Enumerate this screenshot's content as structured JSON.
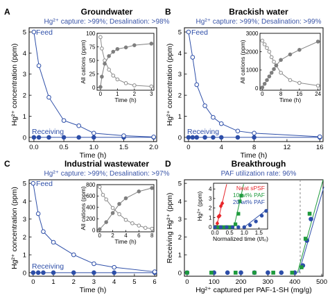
{
  "colors": {
    "feed": "#2d4ea8",
    "receiving": "#2d4ea8",
    "inset_filled": "#7f7f7f",
    "inset_open": "#8a8a8a",
    "neat": "#e8262b",
    "paf10": "#1e9a3c",
    "paf20": "#2d4ea8"
  },
  "chart_data": [
    {
      "panel": "A",
      "type": "line",
      "title": "Groundwater",
      "subtitle": "Hg²⁺ capture: >99%; Desalination: >98%",
      "xlabel": "Time (h)",
      "ylabel": "Hg²⁺ concentration (ppm)",
      "xlim": [
        -0.08,
        2.05
      ],
      "ylim": [
        -0.2,
        5.2
      ],
      "xticks": [
        "0.0",
        "0.5",
        "1.0",
        "1.5",
        "2.0"
      ],
      "xtick_values": [
        0,
        0.5,
        1,
        1.5,
        2
      ],
      "yticks": [
        "0",
        "1",
        "2",
        "3",
        "4",
        "5"
      ],
      "ytick_values": [
        0,
        1,
        2,
        3,
        4,
        5
      ],
      "annotations": [
        "Feed",
        "Receiving"
      ],
      "series": [
        {
          "name": "Feed",
          "marker": "open",
          "x": [
            0,
            0.083,
            0.25,
            0.5,
            0.75,
            1.0,
            1.5,
            2.0
          ],
          "y": [
            5.0,
            3.4,
            1.9,
            0.8,
            0.55,
            0.2,
            0.08,
            0.02
          ]
        },
        {
          "name": "Receiving",
          "marker": "filled",
          "x": [
            0,
            0.083,
            0.25,
            0.5,
            0.75,
            1.0,
            1.5,
            2.0
          ],
          "y": [
            0,
            0,
            0,
            0,
            0,
            0,
            0,
            0
          ]
        }
      ],
      "inset": {
        "xlabel": "Time (h)",
        "ylabel": "All cations (ppm)",
        "xlim": [
          -0.2,
          3.15
        ],
        "ylim": [
          -5,
          100
        ],
        "xticks": [
          "0",
          "1",
          "2",
          "3"
        ],
        "xtick_values": [
          0,
          1,
          2,
          3
        ],
        "yticks": [
          "0",
          "25",
          "50",
          "75",
          "100"
        ],
        "ytick_values": [
          0,
          25,
          50,
          75,
          100
        ],
        "series": [
          {
            "marker": "open",
            "x": [
              0,
              0.083,
              0.25,
              0.5,
              0.75,
              1.0,
              1.5,
              2.0,
              3.0
            ],
            "y": [
              93,
              72,
              50,
              33,
              22,
              15,
              8,
              4,
              2
            ]
          },
          {
            "marker": "filled",
            "x": [
              0,
              0.083,
              0.25,
              0.5,
              0.75,
              1.0,
              1.5,
              2.0,
              3.0
            ],
            "y": [
              1,
              20,
              44,
              58,
              66,
              71,
              74,
              78,
              81
            ]
          }
        ]
      }
    },
    {
      "panel": "B",
      "type": "line",
      "title": "Brackish water",
      "subtitle": "Hg²⁺ capture: >99%; Desalination: >99%",
      "xlabel": "Time (h)",
      "ylabel": "Hg²⁺ concentration (ppm)",
      "xlim": [
        -0.5,
        16.4
      ],
      "ylim": [
        -0.2,
        5.2
      ],
      "xticks": [
        "0",
        "4",
        "8",
        "12",
        "16"
      ],
      "xtick_values": [
        0,
        4,
        8,
        12,
        16
      ],
      "yticks": [
        "0",
        "1",
        "2",
        "3",
        "4",
        "5"
      ],
      "ytick_values": [
        0,
        1,
        2,
        3,
        4,
        5
      ],
      "annotations": [
        "Feed",
        "Receiving"
      ],
      "series": [
        {
          "name": "Feed",
          "marker": "open",
          "x": [
            0,
            0.5,
            1,
            2,
            3,
            4,
            6,
            8,
            16
          ],
          "y": [
            5.0,
            3.8,
            2.5,
            1.5,
            0.95,
            0.65,
            0.3,
            0.2,
            0.03
          ]
        },
        {
          "name": "Receiving",
          "marker": "filled",
          "x": [
            0,
            0.5,
            1,
            2,
            3,
            4,
            6,
            8,
            16
          ],
          "y": [
            0,
            0,
            0,
            0,
            0,
            0,
            0,
            0,
            0
          ]
        }
      ],
      "inset": {
        "xlabel": "Time (h)",
        "ylabel": "All cations (ppm)",
        "x_display": [
          0,
          1,
          2,
          3,
          4,
          5,
          6,
          8,
          12,
          16,
          24
        ],
        "xlim": [
          -1,
          25
        ],
        "ylim": [
          -100,
          3000
        ],
        "xticks": [
          "0",
          "8",
          "16",
          "24"
        ],
        "xtick_values": [
          0,
          8,
          16,
          24
        ],
        "yticks": [
          "0",
          "1000",
          "2000",
          "3000"
        ],
        "ytick_values": [
          0,
          1000,
          2000,
          3000
        ],
        "series": [
          {
            "marker": "open",
            "x": [
              0,
              1,
              2,
              3,
              4,
              5,
              6,
              8,
              12,
              16,
              24
            ],
            "y": [
              2600,
              2400,
              2200,
              2000,
              1700,
              1450,
              1250,
              850,
              450,
              300,
              150
            ]
          },
          {
            "marker": "filled",
            "x": [
              0,
              1,
              2,
              3,
              4,
              5,
              6,
              8,
              12,
              16,
              24
            ],
            "y": [
              50,
              250,
              450,
              650,
              850,
              1050,
              1250,
              1550,
              1850,
              2100,
              2550
            ]
          }
        ]
      }
    },
    {
      "panel": "C",
      "type": "line",
      "title": "Industrial wastewater",
      "subtitle": "Hg²⁺ capture: >99%; Desalination: >97%",
      "xlabel": "Time (h)",
      "ylabel": "Hg²⁺ concentration (ppm)",
      "xlim": [
        -0.2,
        6.1
      ],
      "ylim": [
        -0.2,
        5.2
      ],
      "xticks": [
        "0",
        "1",
        "2",
        "3",
        "4",
        "5",
        "6"
      ],
      "xtick_values": [
        0,
        1,
        2,
        3,
        4,
        5,
        6
      ],
      "yticks": [
        "0",
        "1",
        "2",
        "3",
        "4",
        "5"
      ],
      "ytick_values": [
        0,
        1,
        2,
        3,
        4,
        5
      ],
      "annotations": [
        "Feed",
        "Receiving"
      ],
      "series": [
        {
          "name": "Feed",
          "marker": "open",
          "x": [
            0,
            0.25,
            0.5,
            1,
            2,
            3,
            4,
            6
          ],
          "y": [
            5.0,
            3.3,
            2.3,
            1.7,
            1.0,
            0.5,
            0.3,
            0.05
          ]
        },
        {
          "name": "Receiving",
          "marker": "filled",
          "x": [
            0,
            0.25,
            0.5,
            1,
            2,
            3,
            4,
            6
          ],
          "y": [
            0,
            0,
            0,
            0,
            0,
            0,
            0,
            0
          ]
        }
      ],
      "inset": {
        "xlabel": "Time (h)",
        "ylabel": "All cations (ppm)",
        "xlim": [
          -0.4,
          8.3
        ],
        "ylim": [
          -30,
          800
        ],
        "xticks": [
          "0",
          "2",
          "4",
          "6",
          "8"
        ],
        "xtick_values": [
          0,
          2,
          4,
          6,
          8
        ],
        "yticks": [
          "0",
          "200",
          "400",
          "600",
          "800"
        ],
        "ytick_values": [
          0,
          200,
          400,
          600,
          800
        ],
        "series": [
          {
            "marker": "open",
            "x": [
              0,
              0.5,
              1,
              2,
              3,
              4,
              5,
              6,
              7,
              8
            ],
            "y": [
              760,
              620,
              540,
              390,
              280,
              180,
              120,
              80,
              40,
              25
            ]
          },
          {
            "marker": "filled",
            "x": [
              0,
              1,
              2,
              3,
              4,
              6,
              8
            ],
            "y": [
              15,
              140,
              300,
              460,
              560,
              680,
              740
            ]
          }
        ]
      }
    },
    {
      "panel": "D",
      "type": "line",
      "title": "Breakthrough",
      "subtitle": "PAF utilization rate: 96%",
      "xlabel": "Hg²⁺ captured per PAF-1-SH (mg/g)",
      "ylabel": "Receiving Hg²⁺ (ppm)",
      "xlim": [
        -10,
        505
      ],
      "ylim": [
        -0.2,
        5.2
      ],
      "xticks": [
        "0",
        "100",
        "200",
        "300",
        "400",
        "500"
      ],
      "xtick_values": [
        0,
        100,
        200,
        300,
        400,
        500
      ],
      "yticks": [
        "0",
        "1",
        "2",
        "3",
        "4",
        "5"
      ],
      "ytick_values": [
        0,
        1,
        2,
        3,
        4,
        5
      ],
      "vline_x": 420,
      "series": [
        {
          "name": "20 wt% PAF",
          "color": "paf20",
          "x": [
            0,
            100,
            150,
            200,
            250,
            300,
            350,
            400,
            430,
            445,
            460
          ],
          "y": [
            0,
            0,
            0,
            0,
            0,
            0,
            0,
            0,
            0.4,
            1.8,
            3.0
          ]
        },
        {
          "name": "10 wt% PAF",
          "color": "paf10",
          "x": [
            0,
            90,
            180,
            250,
            320,
            390,
            425,
            440,
            455
          ],
          "y": [
            0,
            0,
            0,
            0,
            0,
            0,
            0.3,
            1.9,
            3.3
          ]
        }
      ],
      "fit_line": {
        "x": [
          410,
          505
        ],
        "y": [
          0,
          5.2
        ]
      },
      "inset": {
        "xlabel": "Normalized time (t/t₀)",
        "ylabel": "Hg²⁺ (ppm)",
        "xlim": [
          -0.05,
          1.8
        ],
        "ylim": [
          -0.2,
          4.6
        ],
        "xticks": [
          "0.0",
          "0.5",
          "1.0",
          "1.5"
        ],
        "xtick_values": [
          0,
          0.5,
          1,
          1.5
        ],
        "yticks": [
          "0",
          "1",
          "2",
          "3",
          "4"
        ],
        "ytick_values": [
          0,
          1,
          2,
          3,
          4
        ],
        "legend": [
          "Neat sPSF",
          "10 wt% PAF",
          "20 wt% PAF"
        ],
        "series": [
          {
            "name": "Neat sPSF",
            "color": "neat",
            "marker": "diamond",
            "x": [
              0,
              0.04,
              0.08,
              0.12,
              0.16,
              0.2,
              0.25
            ],
            "y": [
              0,
              0,
              0.4,
              1.1,
              1.2,
              2.2,
              2.5
            ],
            "line_x": [
              0.05,
              0.4
            ],
            "line_y": [
              0,
              4.5
            ]
          },
          {
            "name": "10 wt% PAF",
            "color": "paf10",
            "marker": "square",
            "x": [
              0,
              0.1,
              0.2,
              0.3,
              0.4,
              0.5,
              0.6,
              0.7,
              0.8,
              0.85,
              0.9
            ],
            "y": [
              0,
              0,
              0,
              0,
              0,
              0,
              0,
              0.3,
              1.4,
              2.7,
              3.3
            ],
            "line_x": [
              0.65,
              0.98
            ],
            "line_y": [
              0,
              4.5
            ]
          },
          {
            "name": "20 wt% PAF",
            "color": "paf20",
            "marker": "circle",
            "x": [
              0,
              0.2,
              0.4,
              0.6,
              0.8,
              1.0,
              1.2,
              1.4,
              1.6,
              1.75
            ],
            "y": [
              0,
              0,
              0,
              0,
              0,
              0,
              0.2,
              0.6,
              1.2,
              1.7
            ],
            "line_x": [
              1.0,
              1.8
            ],
            "line_y": [
              0,
              1.9
            ]
          }
        ]
      }
    }
  ]
}
